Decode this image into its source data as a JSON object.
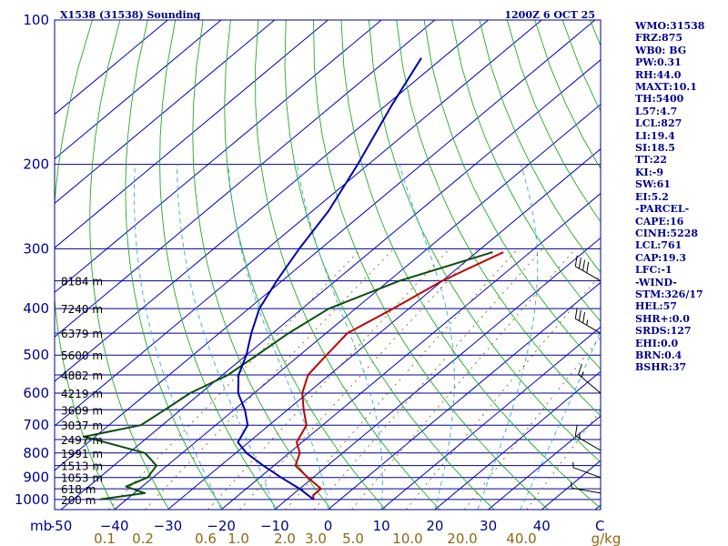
{
  "header": {
    "station": "X1538 (31538) Sounding",
    "time": "1200Z  6 OCT 25"
  },
  "indices": [
    "WMO:31538",
    "FRZ:875",
    "WB0: BG",
    "PW:0.31",
    "RH:44.0",
    "MAXT:10.1",
    "TH:5400",
    "L57:4.7",
    "LCL:827",
    "LI:19.4",
    "SI:18.5",
    "TT:22",
    "KI:-9",
    "SW:61",
    "EI:5.2",
    "-PARCEL-",
    "CAPE:16",
    "CINH:5228",
    "LCL:761",
    "CAP:19.3",
    "LFC:-1",
    "-WIND-",
    "STM:326/17",
    "HEL:57",
    "SHR+:0.0",
    "SRDS:127",
    "EHI:0.0",
    "BRN:0.4",
    "BSHR:37"
  ],
  "colors": {
    "temperature": "#c00000",
    "dewpoint": "#0b4d0b",
    "parcel": "#0000aa",
    "isobar": "#00008b",
    "isotherm": "#0000cd",
    "dry_adiabat": "#22aa22",
    "moist_adiabat": "#33aadd",
    "mixing_ratio": "#8b6914"
  },
  "chart_data": {
    "type": "line",
    "title": "X1538 (31538) Sounding",
    "pressure_unit_label": "mb",
    "temperature_unit_label": "C",
    "mixing_ratio_unit_label": "g/kg",
    "pressure_levels": [
      100,
      200,
      300,
      400,
      500,
      600,
      700,
      800,
      900,
      1000
    ],
    "temperature_ticks": [
      -50,
      -40,
      -30,
      -20,
      -10,
      0,
      10,
      20,
      30,
      40
    ],
    "temperature_tick_labels": [
      "-50",
      "−40",
      "−30",
      "−20",
      "−10",
      "0",
      "10",
      "20",
      "30",
      "40"
    ],
    "mixing_ratio_labels": [
      "0.1",
      "0.2",
      "0.6",
      "1.0",
      "2.0",
      "3.0",
      "5.0",
      "10.0",
      "20.0",
      "40.0"
    ],
    "heights": [
      {
        "label": "8184 m",
        "p": 350
      },
      {
        "label": "7240 m",
        "p": 400
      },
      {
        "label": "6379 m",
        "p": 450
      },
      {
        "label": "5600 m",
        "p": 500
      },
      {
        "label": "4882 m",
        "p": 550
      },
      {
        "label": "4219 m",
        "p": 600
      },
      {
        "label": "3609 m",
        "p": 650
      },
      {
        "label": "3037 m",
        "p": 700
      },
      {
        "label": "2497 m",
        "p": 750
      },
      {
        "label": "1991 m",
        "p": 800
      },
      {
        "label": "1513 m",
        "p": 850
      },
      {
        "label": "1053 m",
        "p": 900
      },
      {
        "label": "618 m",
        "p": 950
      },
      {
        "label": "200 m",
        "p": 1000
      }
    ],
    "series": [
      {
        "name": "Temperature",
        "points": [
          [
            305,
            -25
          ],
          [
            350,
            -30
          ],
          [
            400,
            -33
          ],
          [
            450,
            -36
          ],
          [
            500,
            -35
          ],
          [
            550,
            -34
          ],
          [
            600,
            -31
          ],
          [
            650,
            -27
          ],
          [
            700,
            -23
          ],
          [
            760,
            -21
          ],
          [
            800,
            -18
          ],
          [
            850,
            -16
          ],
          [
            900,
            -11
          ],
          [
            950,
            -6
          ],
          [
            980,
            -6
          ],
          [
            1000,
            -5
          ]
        ]
      },
      {
        "name": "Dewpoint",
        "points": [
          [
            305,
            -27
          ],
          [
            350,
            -38
          ],
          [
            400,
            -45
          ],
          [
            450,
            -47
          ],
          [
            500,
            -48
          ],
          [
            550,
            -49
          ],
          [
            600,
            -52
          ],
          [
            650,
            -53
          ],
          [
            700,
            -54
          ],
          [
            740,
            -62
          ],
          [
            800,
            -47
          ],
          [
            850,
            -42
          ],
          [
            900,
            -41
          ],
          [
            940,
            -43
          ],
          [
            970,
            -38
          ],
          [
            1000,
            -45
          ]
        ]
      },
      {
        "name": "Parcel",
        "points": [
          [
            120,
            -84
          ],
          [
            150,
            -79
          ],
          [
            200,
            -72
          ],
          [
            250,
            -67
          ],
          [
            300,
            -64
          ],
          [
            350,
            -61
          ],
          [
            400,
            -58
          ],
          [
            450,
            -54
          ],
          [
            500,
            -50
          ],
          [
            550,
            -47
          ],
          [
            600,
            -43
          ],
          [
            650,
            -38
          ],
          [
            700,
            -34
          ],
          [
            760,
            -32
          ],
          [
            800,
            -28
          ],
          [
            850,
            -22
          ],
          [
            900,
            -16
          ],
          [
            950,
            -10
          ],
          [
            1000,
            -5
          ]
        ]
      }
    ],
    "wind_barbs": [
      {
        "p": 350,
        "dir": 300,
        "speed": 40
      },
      {
        "p": 450,
        "dir": 300,
        "speed": 35
      },
      {
        "p": 600,
        "dir": 310,
        "speed": 15
      },
      {
        "p": 790,
        "dir": 300,
        "speed": 15
      },
      {
        "p": 900,
        "dir": 290,
        "speed": 5
      },
      {
        "p": 970,
        "dir": 280,
        "speed": 5
      }
    ]
  }
}
